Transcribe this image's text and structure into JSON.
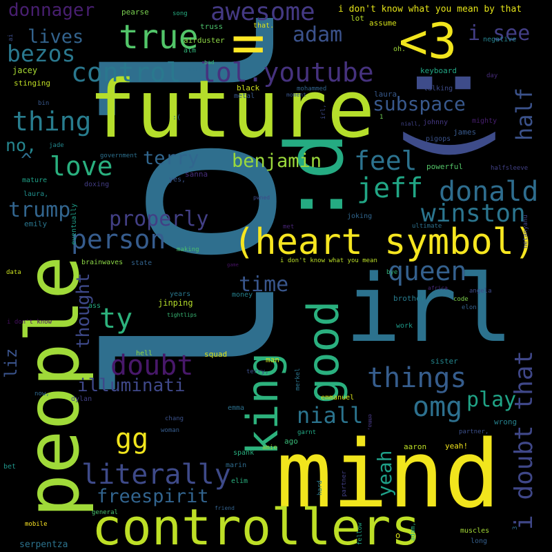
{
  "words": [
    {
      "text": "lol",
      "color": "#2f6f8e"
    },
    {
      "text": "future",
      "color": "#b5de2b"
    },
    {
      "text": "mind",
      "color": "#f1e51d"
    },
    {
      "text": "people",
      "color": "#a0da39"
    },
    {
      "text": "irl",
      "color": "#2c728e"
    },
    {
      "text": ":d",
      "color": "#25ab82"
    },
    {
      "text": ":)",
      "color": "#3e4c8a"
    },
    {
      "text": "controllers",
      "color": "#bddf26"
    },
    {
      "text": "(heart symbol)",
      "color": "#f6e620"
    },
    {
      "text": "king",
      "color": "#2db27d"
    },
    {
      "text": "good",
      "color": "#2ab07f"
    },
    {
      "text": "<3",
      "color": "#f1e51d"
    },
    {
      "text": "=",
      "color": "#fde725"
    },
    {
      "text": "i doubt that",
      "color": "#3f4788"
    },
    {
      "text": "true",
      "color": "#52c569"
    },
    {
      "text": "awesome",
      "color": "#443983"
    },
    {
      "text": "control",
      "color": "#2a788e"
    },
    {
      "text": "lol.youtube",
      "color": "#46327e"
    },
    {
      "text": "adam",
      "color": "#3b528b"
    },
    {
      "text": "bezos",
      "color": "#2a788e"
    },
    {
      "text": "i see",
      "color": "#433e85"
    },
    {
      "text": "donnager",
      "color": "#481f70"
    },
    {
      "text": "lives",
      "color": "#33638d"
    },
    {
      "text": "half",
      "color": "#3b528b"
    },
    {
      "text": "thing",
      "color": "#287d8e"
    },
    {
      "text": "love",
      "color": "#2ab07f"
    },
    {
      "text": "subspace",
      "color": "#38588c"
    },
    {
      "text": "jeff",
      "color": "#21a685"
    },
    {
      "text": "donald",
      "color": "#2e6d8e"
    },
    {
      "text": "feel",
      "color": "#2c728e"
    },
    {
      "text": "winston",
      "color": "#2b758e"
    },
    {
      "text": "terry",
      "color": "#31668e"
    },
    {
      "text": "benjamin",
      "color": "#9bd93c"
    },
    {
      "text": "person",
      "color": "#365c8d"
    },
    {
      "text": "properly",
      "color": "#423f85"
    },
    {
      "text": "queen",
      "color": "#34608d"
    },
    {
      "text": "trump",
      "color": "#32658e"
    },
    {
      "text": "no,",
      "color": "#25858e"
    },
    {
      "text": "^",
      "color": "#2e6e8e"
    },
    {
      "text": "ty",
      "color": "#2db27d"
    },
    {
      "text": "thought",
      "color": "#3e4989"
    },
    {
      "text": "time",
      "color": "#39568c"
    },
    {
      "text": "doubt",
      "color": "#48186a"
    },
    {
      "text": "illuminati",
      "color": "#3f4889"
    },
    {
      "text": "things",
      "color": "#365d8d"
    },
    {
      "text": "yeah",
      "color": "#1fa088"
    },
    {
      "text": "omg",
      "color": "#2d708e"
    },
    {
      "text": "niall",
      "color": "#2b748e"
    },
    {
      "text": "play",
      "color": "#20a386"
    },
    {
      "text": "gg",
      "color": "#f1e51d"
    },
    {
      "text": "liz",
      "color": "#3a538b"
    },
    {
      "text": "literally",
      "color": "#3e4a89"
    },
    {
      "text": "freespirit",
      "color": "#32648e"
    },
    {
      "text": "serpentza",
      "color": "#2c738e"
    },
    {
      "text": "i don't know what you mean by that",
      "color": "#e5e419"
    },
    {
      "text": "truss",
      "color": "#4cc26c"
    },
    {
      "text": "that.",
      "color": "#dde318"
    },
    {
      "text": "lot",
      "color": "#b8de29"
    },
    {
      "text": "negative",
      "color": "#26828e"
    },
    {
      "text": "pearse",
      "color": "#7ad151"
    },
    {
      "text": "song",
      "color": "#27ad81"
    },
    {
      "text": "ai",
      "color": "#3d4e8a"
    },
    {
      "text": "airduster",
      "color": "#8ed645"
    },
    {
      "text": "atm",
      "color": "#32b67a"
    },
    {
      "text": "assume",
      "color": "#d5e21a"
    },
    {
      "text": "jacey",
      "color": "#a8db34"
    },
    {
      "text": "oh.",
      "color": "#9fda3a"
    },
    {
      "text": "keyboard",
      "color": "#22a785"
    },
    {
      "text": "bad",
      "color": "#3aba76"
    },
    {
      "text": "day",
      "color": "#472c7a"
    },
    {
      "text": "stinging",
      "color": "#c0df25"
    },
    {
      "text": "sir!",
      "color": "#2e6f8e"
    },
    {
      "text": "black",
      "color": "#d0e11c"
    },
    {
      "text": "mohammed",
      "color": "#32658e"
    },
    {
      "text": "talking",
      "color": "#3e4c8a"
    },
    {
      "text": "laura",
      "color": "#37598c"
    },
    {
      "text": "metal",
      "color": "#38578c"
    },
    {
      "text": "moment",
      "color": "#39558c"
    },
    {
      "text": "bin",
      "color": "#38588c"
    },
    {
      "text": "irl,",
      "color": "#3e4989"
    },
    {
      "text": ":(",
      "color": "#2f6c8e"
    },
    {
      "text": "1",
      "color": "#74d055"
    },
    {
      "text": "niall,",
      "color": "#404387"
    },
    {
      "text": "johnny",
      "color": "#453882"
    },
    {
      "text": "mighty",
      "color": "#481f70"
    },
    {
      "text": "james",
      "color": "#38598c"
    },
    {
      "text": "pigops",
      "color": "#3b528b"
    },
    {
      "text": "jade",
      "color": "#23888e"
    },
    {
      "text": "government",
      "color": "#2d708e"
    },
    {
      "text": "sanna",
      "color": "#472e7c"
    },
    {
      "text": "powerful",
      "color": "#54c568"
    },
    {
      "text": "mature",
      "color": "#1fa187"
    },
    {
      "text": "halfsleeve",
      "color": "#424186"
    },
    {
      "text": "laura,",
      "color": "#218f8d"
    },
    {
      "text": "doxing",
      "color": "#433d84"
    },
    {
      "text": "yes,",
      "color": "#3a548c"
    },
    {
      "text": "eventually",
      "color": "#1f9e89"
    },
    {
      "text": "pwned",
      "color": "#3e4a89"
    },
    {
      "text": "emily",
      "color": "#2a768e"
    },
    {
      "text": "joking",
      "color": "#31668e"
    },
    {
      "text": "ultimate",
      "color": "#2d718e"
    },
    {
      "text": "met",
      "color": "#482576"
    },
    {
      "text": "netanyahu",
      "color": "#404588"
    },
    {
      "text": "making",
      "color": "#4ac16d"
    },
    {
      "text": "data",
      "color": "#cae11f"
    },
    {
      "text": "brainwaves",
      "color": "#8bd646"
    },
    {
      "text": "state",
      "color": "#33638d"
    },
    {
      "text": "game",
      "color": "#471365"
    },
    {
      "text": "i don't know what you mean",
      "color": "#bade28"
    },
    {
      "text": "bye",
      "color": "#33b67a"
    },
    {
      "text": "africa",
      "color": "#482878"
    },
    {
      "text": "angela",
      "color": "#3e4a89"
    },
    {
      "text": "years",
      "color": "#2a788e"
    },
    {
      "text": "money",
      "color": "#26828e"
    },
    {
      "text": "jinping",
      "color": "#b5de2b"
    },
    {
      "text": "brother",
      "color": "#287c8e"
    },
    {
      "text": "code",
      "color": "#7fd34e"
    },
    {
      "text": "elon",
      "color": "#35608d"
    },
    {
      "text": "ass",
      "color": "#25ab82"
    },
    {
      "text": "i don't know",
      "color": "#471063"
    },
    {
      "text": "tightlips",
      "color": "#3aba76"
    },
    {
      "text": "work",
      "color": "#1e9b8a"
    },
    {
      "text": "hell",
      "color": "#93d741"
    },
    {
      "text": "squad",
      "color": "#dde318"
    },
    {
      "text": "man",
      "color": "#cde11d"
    },
    {
      "text": "terry,",
      "color": "#3d4e8a"
    },
    {
      "text": "sister",
      "color": "#24878e"
    },
    {
      "text": "merkel",
      "color": "#2b748e"
    },
    {
      "text": "now,",
      "color": "#30698e"
    },
    {
      "text": "dylan",
      "color": "#424186"
    },
    {
      "text": "emmanuel",
      "color": "#dae319"
    },
    {
      "text": "emma",
      "color": "#2c718e"
    },
    {
      "text": "emma,",
      "color": "#453781"
    },
    {
      "text": "wrong",
      "color": "#26828e"
    },
    {
      "text": "chang",
      "color": "#3b528b"
    },
    {
      "text": "garnt",
      "color": "#22a884"
    },
    {
      "text": "partner,",
      "color": "#3c4f8a"
    },
    {
      "text": "woman",
      "color": "#365c8d"
    },
    {
      "text": "ago",
      "color": "#38b977"
    },
    {
      "text": "aaron",
      "color": "#bddf26"
    },
    {
      "text": "yeah!",
      "color": "#f1e51d"
    },
    {
      "text": "amie",
      "color": "#9bd93c"
    },
    {
      "text": "spank",
      "color": "#29af7f"
    },
    {
      "text": "bet",
      "color": "#1f968b"
    },
    {
      "text": "marin",
      "color": "#2f6c8e"
    },
    {
      "text": "hard",
      "color": "#2a788e"
    },
    {
      "text": "partner",
      "color": "#424186"
    },
    {
      "text": "elim",
      "color": "#2ab07f"
    },
    {
      "text": "friend",
      "color": "#33628d"
    },
    {
      "text": "general",
      "color": "#48c16e"
    },
    {
      "text": "mobile",
      "color": "#fde725"
    },
    {
      "text": "fellow",
      "color": "#22a785"
    },
    {
      "text": "o",
      "color": "#dde318"
    },
    {
      "text": "adam,",
      "color": "#2ab07f"
    },
    {
      "text": "muscles",
      "color": "#a5db36"
    },
    {
      "text": "long",
      "color": "#355f8d"
    },
    {
      "text": "3",
      "color": "#2e6d8e"
    }
  ]
}
